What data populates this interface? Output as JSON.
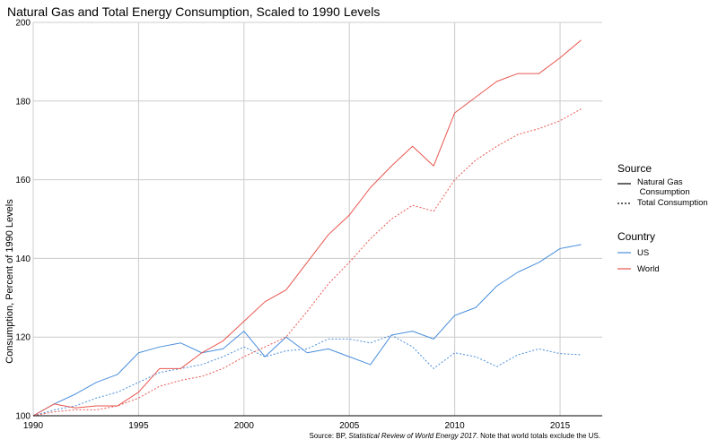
{
  "chart_data": {
    "type": "line",
    "title": "Natural Gas and Total Energy Consumption, Scaled to 1990 Levels",
    "xlabel": "",
    "ylabel": "Consumption, Percent of 1990 Levels",
    "xlim": [
      1990,
      2017
    ],
    "ylim": [
      100,
      200
    ],
    "x_ticks": [
      "1990",
      "1995",
      "2000",
      "2005",
      "2010",
      "2015"
    ],
    "y_ticks": [
      "100",
      "120",
      "140",
      "160",
      "180",
      "200"
    ],
    "grid": true,
    "legend_placement": "right",
    "legend_source_title": "Source",
    "legend_country_title": "Country",
    "legend_source_entries": [
      {
        "label": "Natural Gas\n Consumption",
        "linestyle": "solid"
      },
      {
        "label": "Total Consumption",
        "linestyle": "dotted"
      }
    ],
    "legend_country_entries": [
      {
        "label": "US",
        "color": "#4a8fdc"
      },
      {
        "label": "World",
        "color": "#e8564f"
      }
    ],
    "source_prefix": "Source: BP, ",
    "source_italic": "Statistical Review of World Energy 2017",
    "source_suffix": ". Note that world totals exclude the US.",
    "x": [
      1990,
      1991,
      1992,
      1993,
      1994,
      1995,
      1996,
      1997,
      1998,
      1999,
      2000,
      2001,
      2002,
      2003,
      2004,
      2005,
      2006,
      2007,
      2008,
      2009,
      2010,
      2011,
      2012,
      2013,
      2014,
      2015,
      2016
    ],
    "series": [
      {
        "source": "Natural Gas",
        "country": "US",
        "color": "#4a8fdc",
        "linestyle": "solid",
        "values": [
          100,
          103,
          105.5,
          108.5,
          110.5,
          116,
          117.5,
          118.5,
          116,
          117,
          121.5,
          115,
          120,
          116,
          117,
          115,
          113,
          120.5,
          121.5,
          119.5,
          125.5,
          127.5,
          133,
          136.5,
          139,
          142.5,
          143.5
        ]
      },
      {
        "source": "Total",
        "country": "US",
        "color": "#4a8fdc",
        "linestyle": "dotted",
        "values": [
          100,
          101.5,
          102.5,
          104.5,
          106,
          108.5,
          111,
          112,
          113,
          115,
          117.5,
          115,
          116.5,
          117,
          119.5,
          119.5,
          118.5,
          120.5,
          117.5,
          112,
          116,
          115,
          112.5,
          115.5,
          117,
          115.8,
          115.5
        ]
      },
      {
        "source": "Natural Gas",
        "country": "World",
        "color": "#e8564f",
        "linestyle": "solid",
        "values": [
          100,
          103,
          102,
          102.5,
          102.5,
          106,
          112,
          112,
          116,
          119,
          124,
          129,
          132,
          139,
          146,
          151,
          158,
          163.5,
          168.5,
          163.5,
          177,
          181,
          185,
          187,
          187,
          191,
          195.5
        ]
      },
      {
        "source": "Total",
        "country": "World",
        "color": "#e8564f",
        "linestyle": "dotted",
        "values": [
          100,
          101,
          101.5,
          101.5,
          102.5,
          104.5,
          107.5,
          109,
          110,
          112,
          115,
          117.5,
          120,
          126.5,
          133.5,
          139,
          145,
          150,
          153.5,
          152,
          160,
          165,
          168.5,
          171.5,
          173,
          175,
          178
        ]
      }
    ]
  }
}
